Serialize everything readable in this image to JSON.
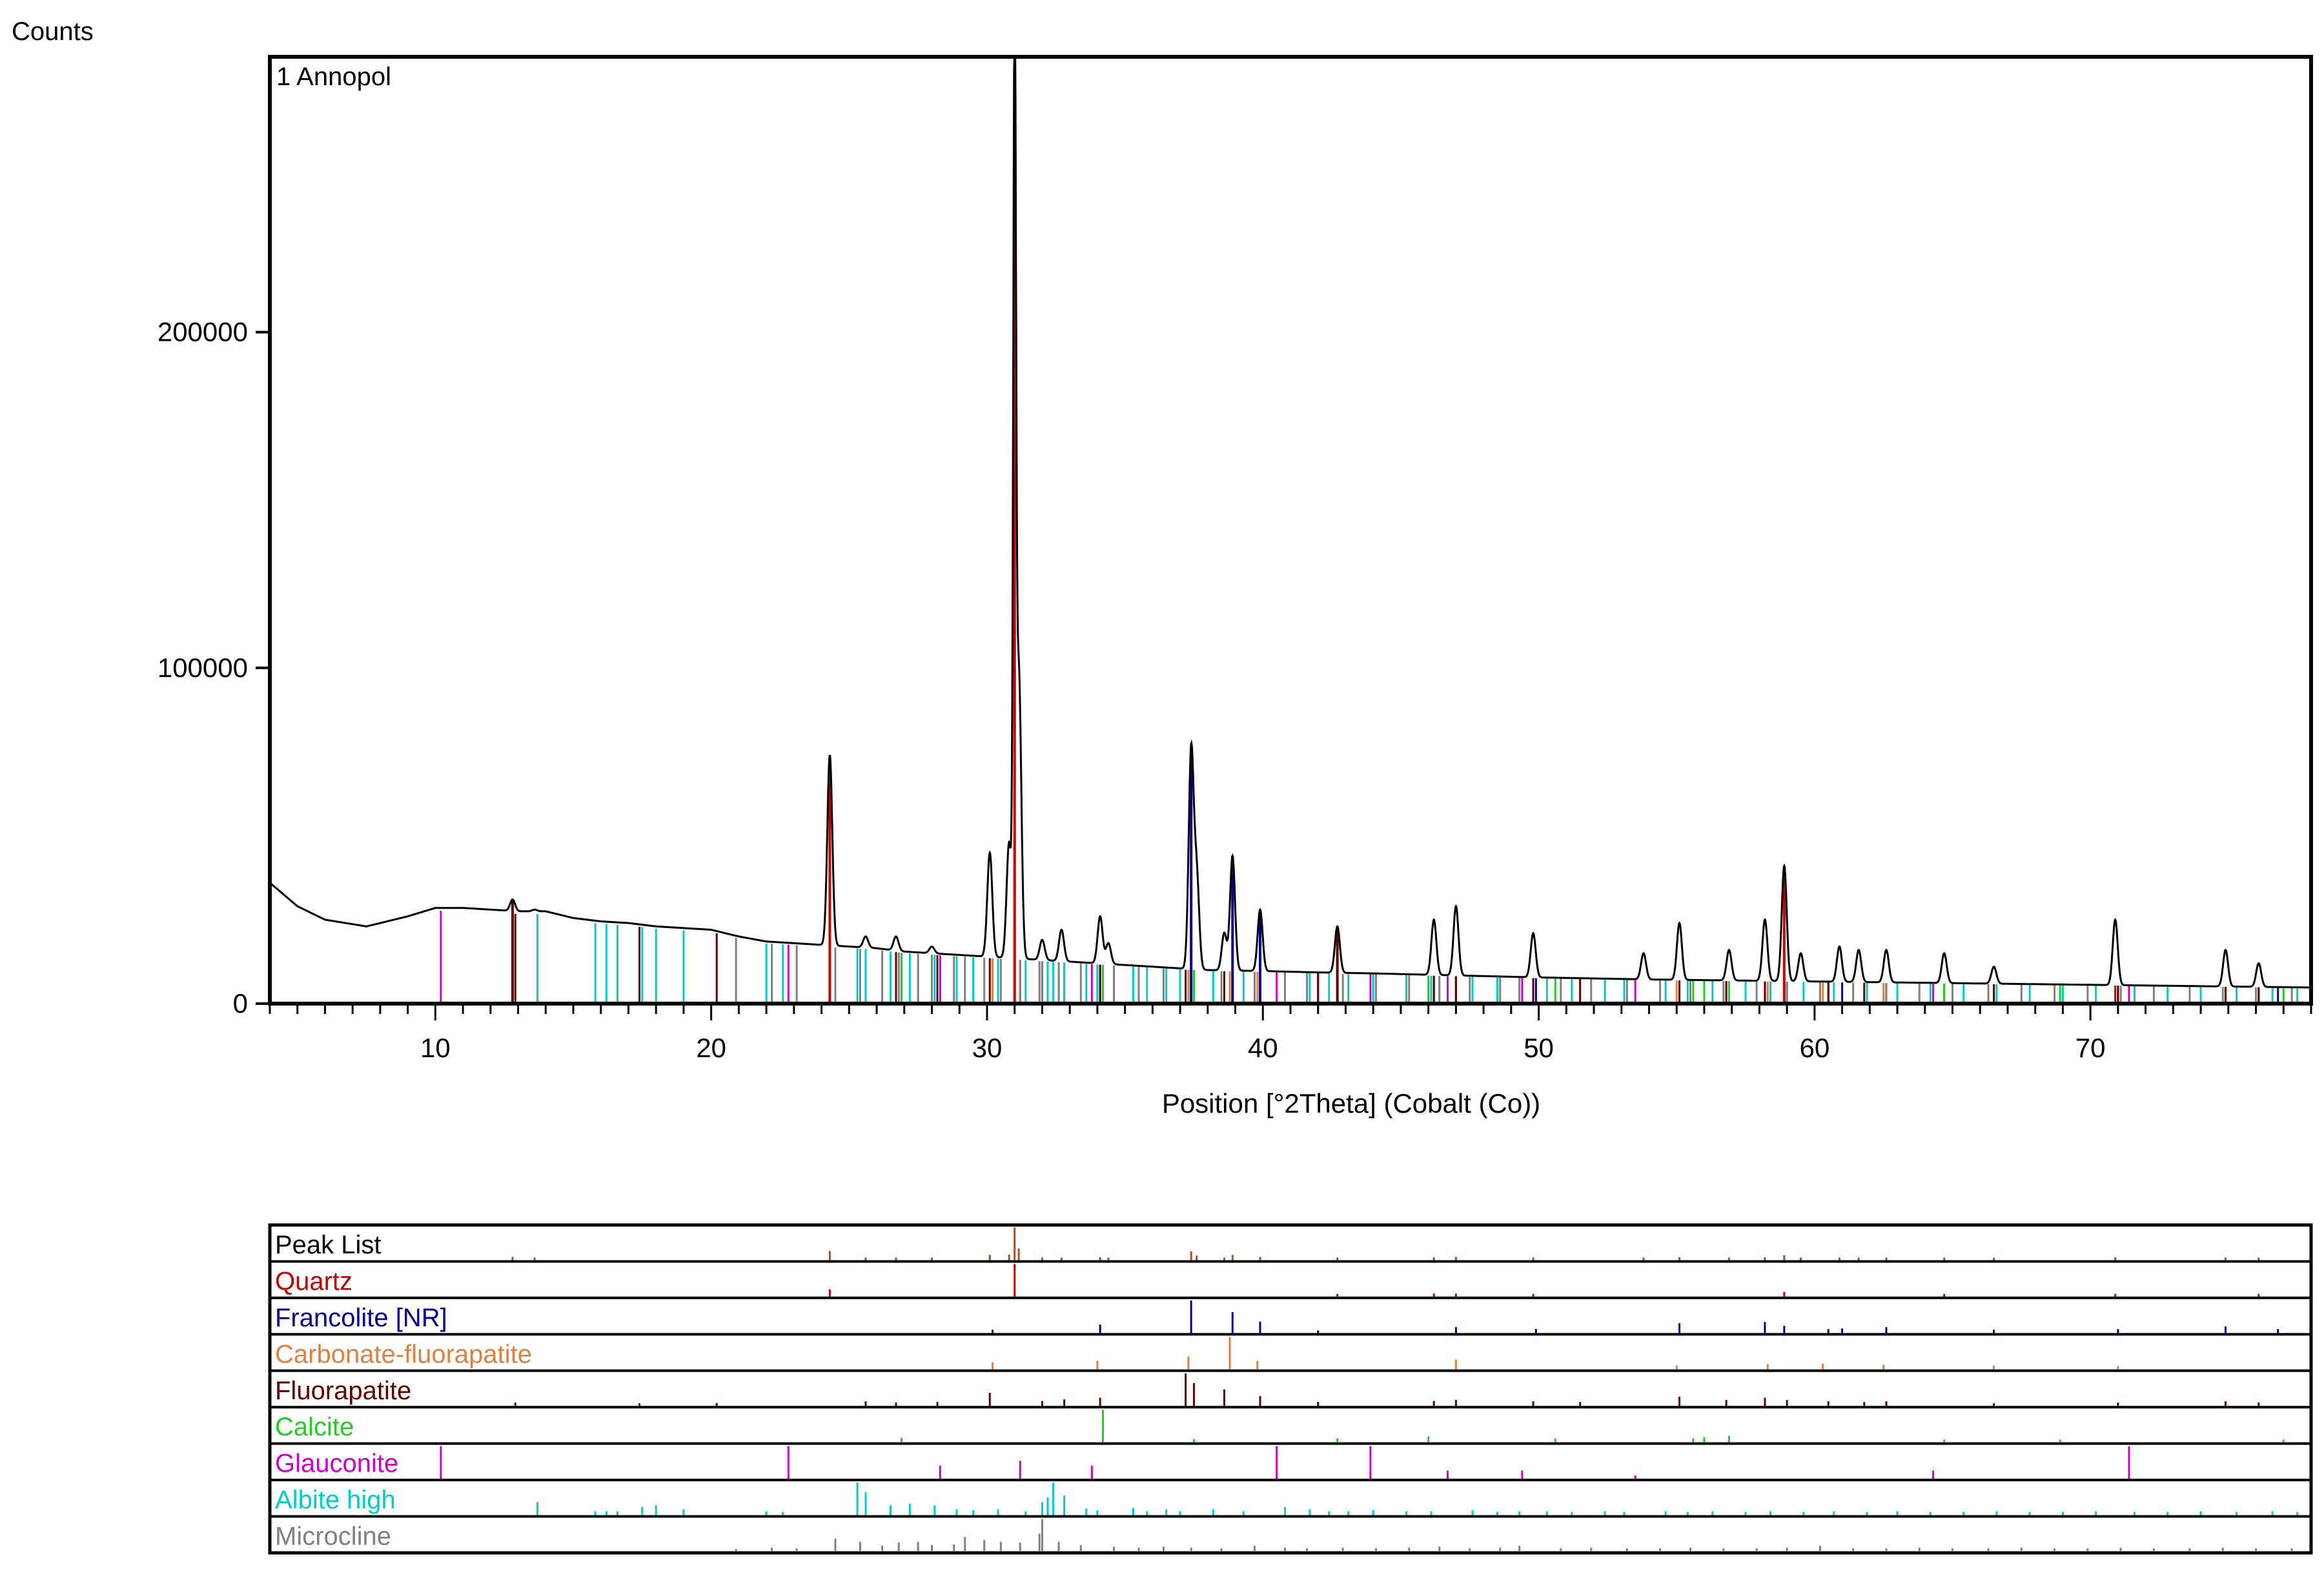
{
  "chart_data": {
    "type": "line",
    "y_axis_title": "Counts",
    "sample_label": "1 Annopol",
    "xlabel": "Position [°2Theta] (Cobalt (Co))",
    "xlim": [
      4,
      78
    ],
    "ylim": [
      0,
      282000
    ],
    "x_ticks": [
      10,
      20,
      30,
      40,
      50,
      60,
      70
    ],
    "y_ticks": [
      0,
      100000,
      200000
    ],
    "y_tick_labels": [
      "0",
      "100000",
      "200000"
    ],
    "grid": false,
    "pattern": {
      "name": "1 Annopol",
      "color": "#000000",
      "background": [
        [
          4,
          36000
        ],
        [
          5,
          29000
        ],
        [
          6,
          25000
        ],
        [
          7.5,
          23000
        ],
        [
          9,
          26000
        ],
        [
          10,
          28500
        ],
        [
          11,
          28500
        ],
        [
          12,
          28000
        ],
        [
          13,
          27500
        ],
        [
          14,
          27500
        ],
        [
          15,
          25500
        ],
        [
          16,
          24500
        ],
        [
          17,
          24000
        ],
        [
          18,
          23000
        ],
        [
          19,
          22500
        ],
        [
          20,
          22000
        ],
        [
          21,
          20000
        ],
        [
          22,
          18500
        ],
        [
          23,
          18000
        ],
        [
          24,
          17500
        ],
        [
          25,
          17000
        ],
        [
          26,
          16500
        ],
        [
          27,
          15500
        ],
        [
          28,
          15000
        ],
        [
          29,
          14500
        ],
        [
          30,
          14000
        ],
        [
          31,
          13500
        ],
        [
          32,
          13000
        ],
        [
          33,
          12500
        ],
        [
          34,
          12000
        ],
        [
          35,
          11500
        ],
        [
          36,
          11000
        ],
        [
          37,
          10500
        ],
        [
          38,
          10000
        ],
        [
          40,
          9700
        ],
        [
          42,
          9300
        ],
        [
          44,
          9000
        ],
        [
          46,
          8600
        ],
        [
          48,
          8200
        ],
        [
          50,
          7800
        ],
        [
          52,
          7500
        ],
        [
          54,
          7200
        ],
        [
          56,
          7000
        ],
        [
          58,
          6800
        ],
        [
          60,
          6600
        ],
        [
          62,
          6400
        ],
        [
          64,
          6200
        ],
        [
          66,
          6000
        ],
        [
          68,
          5800
        ],
        [
          70,
          5600
        ],
        [
          72,
          5400
        ],
        [
          74,
          5200
        ],
        [
          76,
          5000
        ],
        [
          78,
          4800
        ]
      ],
      "peaks": [
        [
          12.8,
          31000
        ],
        [
          13.6,
          28000
        ],
        [
          24.3,
          74000
        ],
        [
          25.6,
          20000
        ],
        [
          26.7,
          20000
        ],
        [
          28.0,
          17000
        ],
        [
          30.1,
          45000
        ],
        [
          30.8,
          48000
        ],
        [
          31.0,
          278000
        ],
        [
          31.15,
          100000
        ],
        [
          32.0,
          19000
        ],
        [
          32.7,
          22000
        ],
        [
          34.1,
          26000
        ],
        [
          34.4,
          18000
        ],
        [
          37.4,
          75000
        ],
        [
          37.6,
          38000
        ],
        [
          38.6,
          21000
        ],
        [
          38.9,
          44000
        ],
        [
          39.9,
          28000
        ],
        [
          42.7,
          23000
        ],
        [
          46.2,
          25000
        ],
        [
          47.0,
          29000
        ],
        [
          49.8,
          21000
        ],
        [
          53.8,
          15000
        ],
        [
          55.1,
          24000
        ],
        [
          56.9,
          16000
        ],
        [
          58.2,
          25000
        ],
        [
          58.9,
          41000
        ],
        [
          59.5,
          15000
        ],
        [
          60.9,
          17000
        ],
        [
          61.6,
          16000
        ],
        [
          62.6,
          16000
        ],
        [
          64.7,
          15000
        ],
        [
          66.5,
          11000
        ],
        [
          70.9,
          25000
        ],
        [
          74.9,
          16000
        ],
        [
          76.1,
          12000
        ]
      ]
    },
    "peak_list": {
      "name": "Peak List",
      "color": "#a0522d",
      "positions": [
        12.8,
        13.6,
        24.3,
        25.6,
        26.7,
        28.0,
        30.1,
        30.8,
        31.0,
        31.15,
        32.0,
        32.7,
        34.1,
        34.4,
        37.4,
        37.6,
        38.6,
        38.9,
        39.9,
        42.7,
        46.2,
        47.0,
        49.8,
        53.8,
        55.1,
        56.9,
        58.2,
        58.9,
        59.5,
        60.9,
        61.6,
        62.6,
        64.7,
        66.5,
        70.9,
        74.9,
        76.1
      ],
      "intensities": [
        10,
        8,
        28,
        7,
        7,
        6,
        16,
        17,
        100,
        36,
        7,
        8,
        9,
        7,
        27,
        14,
        8,
        16,
        10,
        8,
        9,
        10,
        8,
        5,
        9,
        6,
        9,
        15,
        5,
        6,
        6,
        6,
        5,
        4,
        9,
        6,
        4
      ]
    },
    "series": [
      {
        "name": "Quartz",
        "color": "#c00000",
        "positions": [
          24.3,
          31.0,
          42.7,
          46.2,
          47.0,
          49.8,
          58.9,
          64.7,
          70.9,
          76.1
        ],
        "intensities": [
          22,
          100,
          8,
          9,
          9,
          6,
          14,
          5,
          8,
          4
        ]
      },
      {
        "name": "Francolite [NR]",
        "color": "#00008b",
        "positions": [
          30.2,
          34.1,
          37.4,
          38.9,
          39.9,
          42.0,
          47.0,
          49.9,
          55.1,
          58.2,
          58.9,
          60.5,
          61.0,
          62.6,
          66.5,
          71.0,
          74.9,
          76.8
        ],
        "intensities": [
          10,
          26,
          100,
          64,
          35,
          8,
          18,
          12,
          30,
          34,
          22,
          12,
          14,
          18,
          10,
          12,
          20,
          12
        ]
      },
      {
        "name": "Carbonate-fluorapatite",
        "color": "#e08040",
        "positions": [
          30.2,
          34.0,
          37.3,
          38.8,
          39.8,
          47.0,
          55.0,
          58.3,
          60.3,
          62.5,
          66.5,
          71.0
        ],
        "intensities": [
          22,
          26,
          40,
          100,
          26,
          30,
          12,
          16,
          18,
          14,
          12,
          10
        ]
      },
      {
        "name": "Fluorapatite",
        "color": "#600000",
        "positions": [
          12.9,
          17.4,
          20.2,
          25.6,
          26.7,
          28.2,
          30.1,
          32.0,
          32.8,
          34.1,
          37.2,
          37.5,
          38.6,
          39.9,
          42.0,
          46.2,
          47.0,
          49.8,
          51.5,
          55.1,
          56.8,
          58.2,
          59.0,
          60.5,
          61.8,
          62.6,
          66.5,
          71.0,
          74.9,
          76.1
        ],
        "intensities": [
          10,
          8,
          9,
          14,
          10,
          12,
          40,
          15,
          20,
          25,
          100,
          70,
          50,
          30,
          12,
          15,
          18,
          14,
          12,
          28,
          18,
          25,
          18,
          14,
          12,
          14,
          8,
          10,
          14,
          10
        ]
      },
      {
        "name": "Calcite",
        "color": "#22cc22",
        "positions": [
          26.9,
          34.2,
          37.5,
          42.7,
          46.0,
          50.6,
          55.6,
          56.0,
          56.9,
          64.7,
          68.9,
          77.0
        ],
        "intensities": [
          14,
          100,
          10,
          12,
          18,
          12,
          12,
          16,
          20,
          8,
          6,
          8
        ]
      },
      {
        "name": "Glauconite",
        "color": "#cc00cc",
        "positions": [
          10.2,
          22.8,
          28.3,
          31.2,
          33.8,
          40.5,
          43.9,
          46.7,
          49.4,
          53.5,
          64.3,
          71.4
        ],
        "intensities": [
          100,
          100,
          40,
          55,
          40,
          100,
          100,
          25,
          25,
          10,
          25,
          100
        ]
      },
      {
        "name": "Albite high",
        "color": "#00cccc",
        "positions": [
          13.7,
          15.8,
          16.2,
          16.6,
          17.5,
          18.0,
          19.0,
          22.0,
          22.6,
          25.3,
          25.6,
          26.5,
          27.2,
          28.1,
          28.9,
          29.5,
          30.4,
          31.4,
          32.0,
          32.2,
          32.4,
          32.8,
          33.6,
          34.0,
          35.3,
          35.8,
          36.5,
          37.0,
          38.2,
          39.3,
          40.8,
          41.7,
          42.4,
          43.1,
          44.0,
          45.2,
          46.1,
          47.6,
          48.5,
          49.3,
          50.3,
          51.2,
          52.4,
          53.1,
          54.6,
          55.4,
          56.3,
          57.5,
          58.4,
          59.6,
          60.7,
          61.9,
          63.0,
          64.2,
          65.4,
          66.6,
          67.8,
          69.0,
          70.2,
          71.6,
          72.8,
          74.0,
          75.3,
          76.6,
          77.5
        ],
        "intensities": [
          40,
          12,
          12,
          12,
          25,
          30,
          18,
          12,
          10,
          100,
          70,
          30,
          35,
          30,
          18,
          15,
          18,
          12,
          40,
          55,
          100,
          60,
          20,
          15,
          22,
          12,
          18,
          12,
          18,
          12,
          25,
          18,
          12,
          12,
          15,
          12,
          12,
          15,
          10,
          12,
          12,
          10,
          12,
          10,
          12,
          10,
          12,
          10,
          12,
          10,
          12,
          10,
          12,
          10,
          10,
          12,
          10,
          10,
          12,
          10,
          10,
          12,
          10,
          12,
          10
        ]
      },
      {
        "name": "Microcline",
        "color": "#808080",
        "positions": [
          20.9,
          22.2,
          23.1,
          24.5,
          25.4,
          26.2,
          26.8,
          27.5,
          28.0,
          28.8,
          29.2,
          29.9,
          30.5,
          31.2,
          31.9,
          32.0,
          32.6,
          33.4,
          34.6,
          35.5,
          36.4,
          37.4,
          38.5,
          39.7,
          40.8,
          41.6,
          42.9,
          44.1,
          45.3,
          46.4,
          47.5,
          48.6,
          49.3,
          50.8,
          51.9,
          53.2,
          54.4,
          55.5,
          56.7,
          57.9,
          59.0,
          60.2,
          61.4,
          62.6,
          63.8,
          65.0,
          66.3,
          67.5,
          68.7,
          69.9,
          71.1,
          72.3,
          73.6,
          74.8,
          76.0,
          77.3
        ],
        "intensities": [
          8,
          12,
          10,
          40,
          30,
          18,
          28,
          30,
          20,
          22,
          45,
          35,
          30,
          28,
          55,
          100,
          30,
          20,
          15,
          12,
          15,
          12,
          10,
          18,
          12,
          10,
          12,
          10,
          12,
          15,
          10,
          12,
          18,
          10,
          12,
          10,
          10,
          12,
          10,
          10,
          12,
          18,
          10,
          10,
          12,
          10,
          10,
          12,
          10,
          10,
          12,
          10,
          10,
          12,
          10,
          10
        ]
      }
    ]
  }
}
